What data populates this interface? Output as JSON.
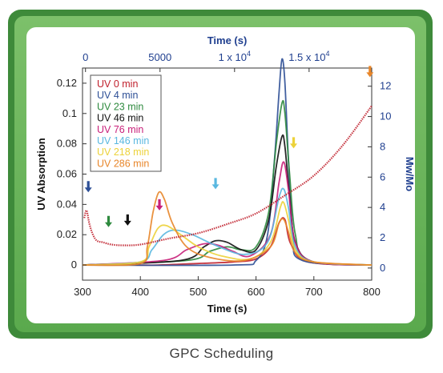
{
  "caption": "GPC Scheduling",
  "chart_data": {
    "type": "line",
    "title": "",
    "xlabel": "Time (s)",
    "ylabel": "UV Absorption",
    "xlim": [
      300,
      800
    ],
    "ylim": [
      -0.01,
      0.13
    ],
    "x_ticks": [
      "300",
      "400",
      "500",
      "600",
      "700",
      "800"
    ],
    "y_ticks": [
      "0",
      "0.02",
      "0.04",
      "0.06",
      "0.08",
      "0.1",
      "0.12"
    ],
    "top_axis": {
      "label": "Time (s)",
      "ticks": [
        "0",
        "5000",
        "1 x 10",
        "1.5 x 10"
      ],
      "tick_exponents": [
        "",
        "",
        "4",
        "4"
      ],
      "tick_values": [
        0,
        5000,
        10000,
        15000
      ],
      "range": [
        -200,
        19200
      ]
    },
    "right_axis": {
      "label": "Mw/Mo",
      "ticks": [
        "0",
        "2",
        "4",
        "6",
        "8",
        "10",
        "12"
      ],
      "range": [
        -0.8,
        13.2
      ]
    },
    "legend_position": "top-left",
    "series": [
      {
        "name": "UV 0 min",
        "color": "#c0202c",
        "x": [
          300,
          380,
          430,
          500,
          560,
          600,
          625,
          640,
          650,
          660,
          690,
          800
        ],
        "y": [
          0,
          0,
          0,
          0.001,
          0.002,
          0.004,
          0.012,
          0.028,
          0.03,
          0.014,
          0.002,
          0
        ]
      },
      {
        "name": "UV 4 min",
        "color": "#2d4f96",
        "x": [
          300,
          560,
          600,
          620,
          632,
          640,
          645,
          650,
          656,
          664,
          680,
          800
        ],
        "y": [
          0,
          0,
          0.003,
          0.02,
          0.07,
          0.115,
          0.136,
          0.12,
          0.07,
          0.02,
          0.003,
          0
        ]
      },
      {
        "name": "UV 23 min",
        "color": "#2e8a3e",
        "x": [
          300,
          480,
          520,
          550,
          575,
          600,
          622,
          635,
          645,
          650,
          658,
          668,
          690,
          800
        ],
        "y": [
          0,
          0.003,
          0.009,
          0.012,
          0.01,
          0.012,
          0.035,
          0.08,
          0.107,
          0.1,
          0.06,
          0.02,
          0.003,
          0
        ]
      },
      {
        "name": "UV 46 min",
        "color": "#111111",
        "x": [
          300,
          470,
          510,
          530,
          550,
          575,
          600,
          622,
          635,
          645,
          650,
          658,
          668,
          700,
          800
        ],
        "y": [
          0,
          0.003,
          0.012,
          0.016,
          0.015,
          0.01,
          0.01,
          0.03,
          0.065,
          0.085,
          0.078,
          0.045,
          0.015,
          0.002,
          0
        ]
      },
      {
        "name": "UV 76 min",
        "color": "#c8207a",
        "x": [
          300,
          440,
          480,
          510,
          535,
          560,
          590,
          625,
          640,
          648,
          656,
          668,
          700,
          800
        ],
        "y": [
          0,
          0.003,
          0.01,
          0.014,
          0.013,
          0.009,
          0.006,
          0.02,
          0.055,
          0.068,
          0.05,
          0.015,
          0.002,
          0
        ]
      },
      {
        "name": "UV 146 min",
        "color": "#5ab8e0",
        "x": [
          300,
          400,
          420,
          440,
          460,
          490,
          530,
          580,
          620,
          640,
          648,
          656,
          668,
          700,
          800
        ],
        "y": [
          0,
          0.002,
          0.01,
          0.02,
          0.023,
          0.02,
          0.013,
          0.007,
          0.015,
          0.045,
          0.05,
          0.038,
          0.012,
          0.002,
          0
        ]
      },
      {
        "name": "UV 218 min",
        "color": "#ecd23a",
        "x": [
          300,
          400,
          415,
          430,
          445,
          470,
          500,
          540,
          590,
          625,
          642,
          648,
          656,
          668,
          700,
          800
        ],
        "y": [
          0,
          0.002,
          0.012,
          0.024,
          0.026,
          0.02,
          0.012,
          0.006,
          0.004,
          0.015,
          0.038,
          0.041,
          0.03,
          0.01,
          0.002,
          0
        ]
      },
      {
        "name": "UV 286 min",
        "color": "#e8862a",
        "x": [
          300,
          400,
          412,
          422,
          432,
          442,
          455,
          480,
          520,
          580,
          625,
          640,
          648,
          656,
          668,
          700,
          800
        ],
        "y": [
          0,
          0.001,
          0.012,
          0.035,
          0.048,
          0.043,
          0.028,
          0.012,
          0.005,
          0.003,
          0.012,
          0.028,
          0.03,
          0.022,
          0.008,
          0.002,
          0
        ]
      },
      {
        "name": "Mw/Mo",
        "color": "#c0202c",
        "axis": "right",
        "x": [
          303,
          307,
          312,
          318,
          325,
          335,
          350,
          370,
          400,
          450,
          500,
          550,
          600,
          650,
          700,
          750,
          800
        ],
        "y": [
          3.3,
          3.8,
          2.9,
          2.2,
          1.8,
          1.7,
          1.55,
          1.5,
          1.55,
          1.95,
          2.3,
          2.9,
          3.6,
          4.8,
          6.1,
          8.1,
          10.7
        ]
      }
    ],
    "markers": [
      {
        "series": "UV 4 min",
        "x": 310,
        "y": 0.048,
        "color": "#2d4f96"
      },
      {
        "series": "UV 23 min",
        "x": 345,
        "y": 0.025,
        "color": "#2e8a3e"
      },
      {
        "series": "UV 46 min",
        "x": 378,
        "y": 0.026,
        "color": "#111111"
      },
      {
        "series": "UV 76 min",
        "x": 433,
        "y": 0.036,
        "color": "#c8207a"
      },
      {
        "series": "UV 146 min",
        "x": 530,
        "y": 0.05,
        "color": "#5ab8e0"
      },
      {
        "series": "UV 218 min",
        "x": 665,
        "y": 0.077,
        "color": "#ecd23a"
      },
      {
        "series": "UV 286 min",
        "x": 797,
        "y": 0.124,
        "color": "#e8862a"
      }
    ]
  }
}
